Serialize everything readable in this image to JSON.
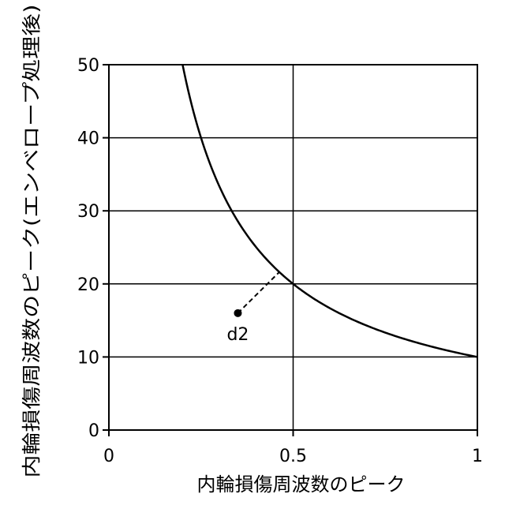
{
  "chart_data": {
    "type": "line",
    "title": "",
    "xlabel": "内輪損傷周波数のピーク",
    "ylabel": "内輪損傷周波数のピーク(エンベロープ処理後)",
    "xlim": [
      0,
      1
    ],
    "ylim": [
      0,
      50
    ],
    "x_ticks": [
      0,
      0.5,
      1
    ],
    "x_tick_labels": [
      "0",
      "0.5",
      "1"
    ],
    "y_ticks": [
      0,
      10,
      20,
      30,
      40,
      50
    ],
    "y_tick_labels": [
      "0",
      "10",
      "20",
      "30",
      "40",
      "50"
    ],
    "grid": true,
    "legend": "none",
    "series": [
      {
        "style": "solid",
        "color": "#000000",
        "relation": "y = 10 / x",
        "x": [
          0.2,
          0.22,
          0.25,
          0.3,
          0.35,
          0.4,
          0.45,
          0.5,
          0.55,
          0.6,
          0.65,
          0.7,
          0.75,
          0.8,
          0.85,
          0.9,
          0.95,
          1.0
        ],
        "y": [
          50,
          45.45,
          40,
          33.33,
          28.57,
          25,
          22.22,
          20,
          18.18,
          16.67,
          15.38,
          14.29,
          13.33,
          12.5,
          11.76,
          11.11,
          10.53,
          10
        ]
      }
    ],
    "annotations": [
      {
        "label": "d2",
        "point": [
          0.35,
          16
        ],
        "dashed_to": [
          0.462,
          21.6
        ]
      }
    ]
  }
}
